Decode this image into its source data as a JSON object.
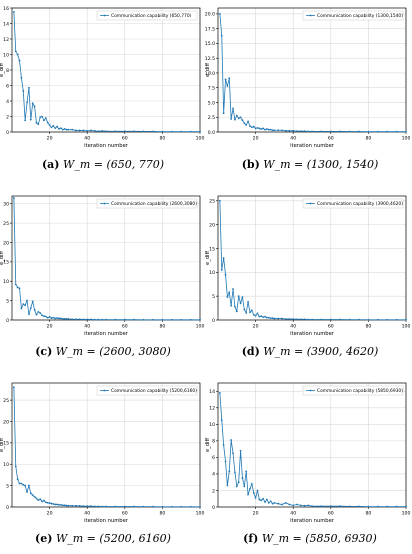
{
  "chart_data": [
    {
      "type": "line",
      "ylabel": "e_diff",
      "xlabel": "iteration number",
      "legend_position": "top-right",
      "grid": true,
      "xlim": [
        0,
        100
      ],
      "ylim": [
        0,
        16
      ],
      "xticks": [
        "20",
        "40",
        "60",
        "80",
        "100"
      ],
      "yticks": [
        "0",
        "2",
        "4",
        "6",
        "8",
        "10",
        "12",
        "14",
        "16"
      ],
      "caption": {
        "label": "(a)",
        "math": "W_m = (650, 770)"
      },
      "series": [
        {
          "name": "Communication capability (650,770)",
          "x": [
            1,
            2,
            3,
            4,
            5,
            6,
            7,
            8,
            9,
            10,
            11,
            12,
            13,
            14,
            15,
            16,
            17,
            18,
            19,
            20,
            21,
            22,
            23,
            24,
            25,
            26,
            27,
            28,
            29,
            30,
            32,
            34,
            36,
            38,
            40,
            42,
            44,
            46,
            48,
            50,
            55,
            60,
            65,
            70,
            75,
            80,
            85,
            90,
            95,
            100
          ],
          "y": [
            15.5,
            10.4,
            10.0,
            9.2,
            7.0,
            5.3,
            1.5,
            3.8,
            5.7,
            1.6,
            3.7,
            3.3,
            1.2,
            1.0,
            1.9,
            2.0,
            1.5,
            1.8,
            1.2,
            0.9,
            0.6,
            0.8,
            0.5,
            0.7,
            0.4,
            0.5,
            0.3,
            0.4,
            0.3,
            0.3,
            0.3,
            0.2,
            0.2,
            0.2,
            0.15,
            0.2,
            0.15,
            0.1,
            0.15,
            0.1,
            0.1,
            0.1,
            0.1,
            0.08,
            0.08,
            0.05,
            0.05,
            0.05,
            0.05,
            0.05
          ]
        }
      ]
    },
    {
      "type": "line",
      "ylabel": "e_diff",
      "xlabel": "iteration number",
      "legend_position": "top-right",
      "grid": true,
      "xlim": [
        0,
        100
      ],
      "ylim": [
        0,
        21
      ],
      "xticks": [
        "20",
        "40",
        "60",
        "80",
        "100"
      ],
      "yticks": [
        "0.0",
        "2.5",
        "5.0",
        "7.5",
        "10.0",
        "12.5",
        "15.0",
        "17.5",
        "20.0"
      ],
      "caption": {
        "label": "(b)",
        "math": "W_m = (1300, 1540)"
      },
      "series": [
        {
          "name": "Communication capability (1300,1540)",
          "x": [
            1,
            2,
            3,
            4,
            5,
            6,
            7,
            8,
            9,
            10,
            11,
            12,
            13,
            14,
            15,
            16,
            17,
            18,
            19,
            20,
            21,
            22,
            23,
            24,
            25,
            26,
            27,
            28,
            29,
            30,
            32,
            34,
            36,
            38,
            40,
            42,
            44,
            46,
            48,
            50,
            55,
            60,
            65,
            70,
            75,
            80,
            85,
            90,
            95,
            100
          ],
          "y": [
            20.0,
            16.3,
            3.2,
            8.9,
            7.8,
            9.1,
            2.2,
            4.0,
            2.1,
            2.8,
            2.3,
            2.5,
            2.0,
            1.5,
            1.2,
            1.8,
            1.0,
            0.8,
            0.9,
            0.6,
            0.7,
            0.6,
            0.5,
            0.6,
            0.4,
            0.5,
            0.4,
            0.4,
            0.3,
            0.3,
            0.3,
            0.3,
            0.2,
            0.2,
            0.2,
            0.15,
            0.15,
            0.15,
            0.1,
            0.1,
            0.1,
            0.1,
            0.1,
            0.08,
            0.08,
            0.05,
            0.05,
            0.05,
            0.05,
            0.05
          ]
        }
      ]
    },
    {
      "type": "line",
      "ylabel": "e_diff",
      "xlabel": "iteration number",
      "legend_position": "top-right",
      "grid": true,
      "xlim": [
        0,
        100
      ],
      "ylim": [
        0,
        32
      ],
      "xticks": [
        "20",
        "40",
        "60",
        "80",
        "100"
      ],
      "yticks": [
        "0",
        "5",
        "10",
        "15",
        "20",
        "25",
        "30"
      ],
      "caption": {
        "label": "(c)",
        "math": "W_m = (2600, 3080)"
      },
      "series": [
        {
          "name": "Communication capability (2600,3080)",
          "x": [
            1,
            2,
            3,
            4,
            5,
            6,
            7,
            8,
            9,
            10,
            11,
            12,
            13,
            14,
            15,
            16,
            17,
            18,
            19,
            20,
            21,
            22,
            23,
            24,
            25,
            26,
            27,
            28,
            29,
            30,
            32,
            34,
            36,
            38,
            40,
            42,
            44,
            46,
            48,
            50,
            55,
            60,
            65,
            70,
            75,
            80,
            85,
            90,
            95,
            100
          ],
          "y": [
            31.5,
            9.2,
            8.4,
            8.2,
            3.0,
            4.1,
            3.8,
            5.0,
            1.5,
            3.1,
            4.8,
            2.6,
            1.4,
            2.1,
            1.8,
            1.2,
            1.0,
            0.9,
            0.6,
            0.8,
            0.5,
            0.6,
            0.4,
            0.5,
            0.4,
            0.4,
            0.3,
            0.3,
            0.3,
            0.3,
            0.2,
            0.2,
            0.2,
            0.15,
            0.15,
            0.15,
            0.1,
            0.1,
            0.1,
            0.1,
            0.1,
            0.08,
            0.08,
            0.05,
            0.05,
            0.05,
            0.05,
            0.05,
            0.05,
            0.05
          ]
        }
      ]
    },
    {
      "type": "line",
      "ylabel": "e_diff",
      "xlabel": "iteration number",
      "legend_position": "top-right",
      "grid": true,
      "xlim": [
        0,
        100
      ],
      "ylim": [
        0,
        26
      ],
      "xticks": [
        "20",
        "40",
        "60",
        "80",
        "100"
      ],
      "yticks": [
        "0",
        "5",
        "10",
        "15",
        "20",
        "25"
      ],
      "caption": {
        "label": "(d)",
        "math": "W_m = (3900, 4620)"
      },
      "series": [
        {
          "name": "Communication capability (3900,4620)",
          "x": [
            1,
            2,
            3,
            4,
            5,
            6,
            7,
            8,
            9,
            10,
            11,
            12,
            13,
            14,
            15,
            16,
            17,
            18,
            19,
            20,
            21,
            22,
            23,
            24,
            25,
            26,
            27,
            28,
            29,
            30,
            32,
            34,
            36,
            38,
            40,
            42,
            44,
            46,
            48,
            50,
            55,
            60,
            65,
            70,
            75,
            80,
            85,
            90,
            95,
            100
          ],
          "y": [
            25.0,
            10.5,
            13.0,
            9.5,
            4.8,
            5.8,
            3.0,
            6.5,
            2.8,
            1.8,
            5.0,
            3.5,
            4.8,
            2.2,
            1.5,
            3.8,
            1.6,
            2.0,
            1.1,
            0.9,
            1.4,
            0.7,
            0.8,
            0.6,
            0.7,
            0.5,
            0.5,
            0.4,
            0.4,
            0.3,
            0.3,
            0.3,
            0.2,
            0.2,
            0.2,
            0.15,
            0.15,
            0.15,
            0.1,
            0.1,
            0.1,
            0.1,
            0.1,
            0.08,
            0.08,
            0.05,
            0.05,
            0.05,
            0.05,
            0.05
          ]
        }
      ]
    },
    {
      "type": "line",
      "ylabel": "e_diff",
      "xlabel": "iteration number",
      "legend_position": "top-right",
      "grid": true,
      "xlim": [
        0,
        100
      ],
      "ylim": [
        0,
        29
      ],
      "xticks": [
        "20",
        "40",
        "60",
        "80",
        "100"
      ],
      "yticks": [
        "0",
        "5",
        "10",
        "15",
        "20",
        "25"
      ],
      "caption": {
        "label": "(e)",
        "math": "W_m = (5200, 6160)"
      },
      "series": [
        {
          "name": "Communication capability (5200,6160)",
          "x": [
            1,
            2,
            3,
            4,
            5,
            6,
            7,
            8,
            9,
            10,
            11,
            12,
            13,
            14,
            15,
            16,
            17,
            18,
            19,
            20,
            21,
            22,
            23,
            24,
            25,
            26,
            27,
            28,
            29,
            30,
            32,
            34,
            36,
            38,
            40,
            42,
            44,
            46,
            48,
            50,
            55,
            60,
            65,
            70,
            75,
            80,
            85,
            90,
            95,
            100
          ],
          "y": [
            28.0,
            9.5,
            6.5,
            5.5,
            5.5,
            5.2,
            5.0,
            3.5,
            5.0,
            3.2,
            2.8,
            2.4,
            2.0,
            1.6,
            1.8,
            1.3,
            1.5,
            1.1,
            1.0,
            0.9,
            0.8,
            0.7,
            0.6,
            0.6,
            0.5,
            0.5,
            0.4,
            0.4,
            0.35,
            0.3,
            0.3,
            0.3,
            0.25,
            0.2,
            0.2,
            0.2,
            0.15,
            0.15,
            0.1,
            0.1,
            0.1,
            0.1,
            0.1,
            0.08,
            0.08,
            0.05,
            0.05,
            0.05,
            0.05,
            0.05
          ]
        }
      ]
    },
    {
      "type": "line",
      "ylabel": "e_diff",
      "xlabel": "iteration number",
      "legend_position": "top-right",
      "grid": true,
      "xlim": [
        0,
        100
      ],
      "ylim": [
        0,
        15
      ],
      "xticks": [
        "20",
        "40",
        "60",
        "80",
        "100"
      ],
      "yticks": [
        "0",
        "2",
        "4",
        "6",
        "8",
        "10",
        "12",
        "14"
      ],
      "caption": {
        "label": "(f)",
        "math": "W_m = (5850, 6930)"
      },
      "series": [
        {
          "name": "Communication capability (5850,6930)",
          "x": [
            1,
            2,
            3,
            4,
            5,
            6,
            7,
            8,
            9,
            10,
            11,
            12,
            13,
            14,
            15,
            16,
            17,
            18,
            19,
            20,
            21,
            22,
            23,
            24,
            25,
            26,
            27,
            28,
            29,
            30,
            32,
            34,
            36,
            38,
            40,
            42,
            44,
            46,
            48,
            50,
            55,
            60,
            65,
            70,
            75,
            80,
            85,
            90,
            95,
            100
          ],
          "y": [
            13.8,
            10.5,
            7.5,
            5.5,
            2.6,
            4.3,
            8.1,
            6.5,
            4.2,
            2.5,
            3.0,
            6.8,
            3.5,
            2.5,
            4.3,
            1.5,
            2.2,
            2.8,
            1.7,
            1.1,
            2.0,
            0.9,
            0.8,
            1.0,
            0.6,
            0.9,
            0.5,
            0.7,
            0.4,
            0.5,
            0.4,
            0.3,
            0.5,
            0.3,
            0.2,
            0.3,
            0.2,
            0.15,
            0.2,
            0.1,
            0.1,
            0.1,
            0.1,
            0.08,
            0.08,
            0.05,
            0.05,
            0.05,
            0.05,
            0.05
          ]
        }
      ]
    }
  ]
}
